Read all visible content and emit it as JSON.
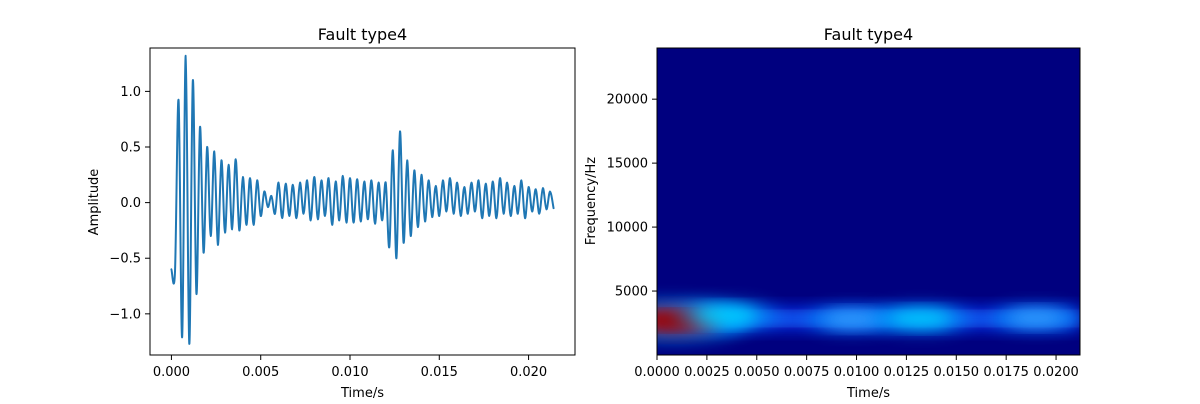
{
  "chart_data": [
    {
      "type": "line",
      "title": "Fault type4",
      "xlabel": "Time/s",
      "ylabel": "Amplitude",
      "xlim": [
        -0.0012,
        0.0226
      ],
      "ylim": [
        -1.37,
        1.39
      ],
      "xticks": [
        0.0,
        0.005,
        0.01,
        0.015,
        0.02
      ],
      "xtick_labels": [
        "0.000",
        "0.005",
        "0.010",
        "0.015",
        "0.020"
      ],
      "yticks": [
        -1.0,
        -0.5,
        0.0,
        0.5,
        1.0
      ],
      "ytick_labels": [
        "−1.0",
        "−0.5",
        "0.0",
        "0.5",
        "1.0"
      ],
      "grid": false,
      "line_color": "#1f77b4",
      "x": [
        0.0,
        0.0002,
        0.0004,
        0.0006,
        0.0008,
        0.001,
        0.0012,
        0.0014,
        0.0016,
        0.0018,
        0.002,
        0.0022,
        0.0024,
        0.0026,
        0.0028,
        0.003,
        0.0032,
        0.0034,
        0.0036,
        0.0038,
        0.004,
        0.0042,
        0.0044,
        0.0046,
        0.0048,
        0.005,
        0.0052,
        0.0054,
        0.0056,
        0.0058,
        0.006,
        0.0062,
        0.0064,
        0.0066,
        0.0068,
        0.007,
        0.0072,
        0.0074,
        0.0076,
        0.0078,
        0.008,
        0.0082,
        0.0084,
        0.0086,
        0.0088,
        0.009,
        0.0092,
        0.0094,
        0.0096,
        0.0098,
        0.01,
        0.0102,
        0.0104,
        0.0106,
        0.0108,
        0.011,
        0.0112,
        0.0114,
        0.0116,
        0.0118,
        0.012,
        0.0122,
        0.0124,
        0.0126,
        0.0128,
        0.013,
        0.0132,
        0.0134,
        0.0136,
        0.0138,
        0.014,
        0.0142,
        0.0144,
        0.0146,
        0.0148,
        0.015,
        0.0152,
        0.0154,
        0.0156,
        0.0158,
        0.016,
        0.0162,
        0.0164,
        0.0166,
        0.0168,
        0.017,
        0.0172,
        0.0174,
        0.0176,
        0.0178,
        0.018,
        0.0182,
        0.0184,
        0.0186,
        0.0188,
        0.019,
        0.0192,
        0.0194,
        0.0196,
        0.0198,
        0.02,
        0.0202,
        0.0204,
        0.0206,
        0.0208,
        0.021,
        0.0212,
        0.0214
      ],
      "y": [
        -0.6,
        -0.62,
        0.92,
        -1.21,
        1.32,
        -1.27,
        1.1,
        -0.82,
        0.68,
        -0.45,
        0.5,
        -0.3,
        0.46,
        -0.38,
        0.38,
        -0.27,
        0.34,
        -0.24,
        0.39,
        -0.25,
        0.23,
        -0.2,
        0.22,
        -0.2,
        0.2,
        -0.12,
        0.1,
        -0.04,
        0.06,
        -0.1,
        0.18,
        -0.14,
        0.17,
        -0.12,
        0.16,
        -0.14,
        0.18,
        -0.1,
        0.2,
        -0.16,
        0.23,
        -0.15,
        0.2,
        -0.12,
        0.22,
        -0.2,
        0.19,
        -0.16,
        0.24,
        -0.18,
        0.22,
        -0.18,
        0.21,
        -0.17,
        0.19,
        -0.15,
        0.2,
        -0.19,
        0.18,
        -0.16,
        0.18,
        -0.4,
        0.47,
        -0.5,
        0.64,
        -0.36,
        0.38,
        -0.3,
        0.29,
        -0.22,
        0.25,
        -0.17,
        0.2,
        -0.13,
        0.15,
        -0.12,
        0.2,
        -0.08,
        0.22,
        -0.1,
        0.18,
        -0.12,
        0.14,
        -0.1,
        0.18,
        -0.08,
        0.2,
        -0.14,
        0.17,
        -0.12,
        0.19,
        -0.14,
        0.22,
        -0.1,
        0.18,
        -0.12,
        0.15,
        -0.1,
        0.2,
        -0.14,
        0.14,
        -0.08,
        0.12,
        -0.1,
        0.13,
        -0.06,
        0.1,
        -0.05
      ]
    },
    {
      "type": "heatmap",
      "title": "Fault type4",
      "xlabel": "Time/s",
      "ylabel": "Frequency/Hz",
      "xlim": [
        0.0,
        0.0212
      ],
      "ylim": [
        0,
        24000
      ],
      "xticks": [
        0.0,
        0.0025,
        0.005,
        0.0075,
        0.01,
        0.0125,
        0.015,
        0.0175,
        0.02
      ],
      "xtick_labels": [
        "0.0000",
        "0.0025",
        "0.0050",
        "0.0075",
        "0.0100",
        "0.0125",
        "0.0150",
        "0.0175",
        "0.0200"
      ],
      "yticks": [
        5000,
        10000,
        15000,
        20000
      ],
      "ytick_labels": [
        "5000",
        "10000",
        "15000",
        "20000"
      ],
      "colormap": "jet",
      "background_color": "#00007f",
      "grid": false,
      "hotspots": [
        {
          "t": 0.0008,
          "f": 2700,
          "intensity": 1.0
        },
        {
          "t": 0.0035,
          "f": 3100,
          "intensity": 0.45
        },
        {
          "t": 0.0098,
          "f": 2800,
          "intensity": 0.32
        },
        {
          "t": 0.0132,
          "f": 2850,
          "intensity": 0.42
        },
        {
          "t": 0.019,
          "f": 2900,
          "intensity": 0.3
        }
      ]
    }
  ]
}
